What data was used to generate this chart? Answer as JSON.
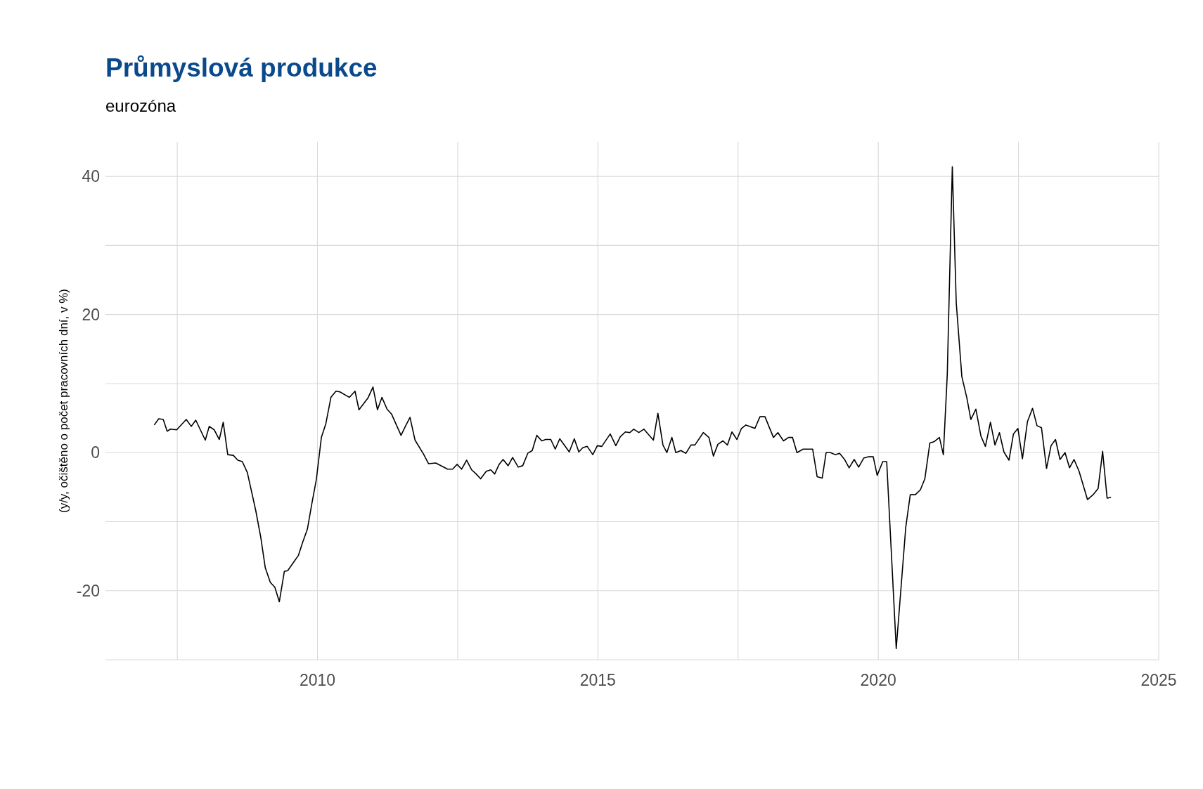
{
  "chart_data": {
    "type": "line",
    "title": "Průmyslová produkce",
    "subtitle": "eurozóna",
    "ylabel": "(y/y, očištěno o počet pracovních dní, v %)",
    "xlim": [
      2006.22,
      2025
    ],
    "ylim": [
      -30,
      45
    ],
    "xticks": [
      {
        "value": 2007.5,
        "label": null
      },
      2010,
      {
        "value": 2012.5,
        "label": null
      },
      2015,
      {
        "value": 2017.5,
        "label": null
      },
      2020,
      {
        "value": 2022.5,
        "label": null
      },
      2025
    ],
    "yticks": [
      {
        "value": -30,
        "label": null
      },
      -20,
      {
        "value": -10,
        "label": null
      },
      0,
      {
        "value": 10,
        "label": null
      },
      20,
      {
        "value": 30,
        "label": null
      },
      40
    ],
    "grid": true,
    "marker": "none",
    "line_style": "solid",
    "series": [
      {
        "color": "#000000",
        "x": [
          2007.09,
          2007.17,
          2007.25,
          2007.32,
          2007.38,
          2007.49,
          2007.66,
          2007.75,
          2007.83,
          2008.0,
          2008.07,
          2008.16,
          2008.25,
          2008.32,
          2008.4,
          2008.5,
          2008.58,
          2008.66,
          2008.75,
          2008.9,
          2008.99,
          2009.07,
          2009.16,
          2009.24,
          2009.32,
          2009.41,
          2009.47,
          2009.59,
          2009.66,
          2009.74,
          2009.82,
          2009.9,
          2009.98,
          2010.07,
          2010.15,
          2010.24,
          2010.33,
          2010.4,
          2010.57,
          2010.67,
          2010.74,
          2010.9,
          2010.99,
          2011.07,
          2011.15,
          2011.24,
          2011.32,
          2011.49,
          2011.58,
          2011.65,
          2011.74,
          2011.89,
          2011.98,
          2012.11,
          2012.32,
          2012.41,
          2012.49,
          2012.57,
          2012.66,
          2012.75,
          2012.83,
          2012.91,
          2013.01,
          2013.09,
          2013.16,
          2013.24,
          2013.31,
          2013.4,
          2013.48,
          2013.58,
          2013.66,
          2013.75,
          2013.83,
          2013.91,
          2014.0,
          2014.07,
          2014.16,
          2014.24,
          2014.32,
          2014.49,
          2014.58,
          2014.66,
          2014.73,
          2014.81,
          2014.91,
          2014.99,
          2015.07,
          2015.22,
          2015.32,
          2015.4,
          2015.49,
          2015.57,
          2015.64,
          2015.73,
          2015.82,
          2015.99,
          2016.07,
          2016.16,
          2016.23,
          2016.32,
          2016.39,
          2016.48,
          2016.57,
          2016.66,
          2016.73,
          2016.88,
          2016.98,
          2017.06,
          2017.14,
          2017.23,
          2017.31,
          2017.39,
          2017.48,
          2017.56,
          2017.64,
          2017.8,
          2017.89,
          2017.98,
          2018.13,
          2018.21,
          2018.31,
          2018.4,
          2018.47,
          2018.55,
          2018.66,
          2018.83,
          2018.91,
          2019.0,
          2019.07,
          2019.15,
          2019.23,
          2019.31,
          2019.4,
          2019.48,
          2019.57,
          2019.65,
          2019.74,
          2019.83,
          2019.91,
          2019.98,
          2020.08,
          2020.15,
          2020.32,
          2020.49,
          2020.57,
          2020.66,
          2020.75,
          2020.83,
          2020.92,
          2021.0,
          2021.09,
          2021.16,
          2021.23,
          2021.32,
          2021.39,
          2021.49,
          2021.58,
          2021.65,
          2021.74,
          2021.83,
          2021.91,
          2022.0,
          2022.08,
          2022.16,
          2022.24,
          2022.33,
          2022.41,
          2022.49,
          2022.57,
          2022.66,
          2022.75,
          2022.83,
          2022.91,
          2023.0,
          2023.08,
          2023.16,
          2023.24,
          2023.33,
          2023.41,
          2023.49,
          2023.58,
          2023.73,
          2023.83,
          2023.92,
          2024.0,
          2024.08,
          2024.15
        ],
        "values": [
          4.0,
          4.9,
          4.8,
          3.1,
          3.4,
          3.3,
          4.8,
          3.8,
          4.7,
          1.8,
          3.8,
          3.3,
          1.9,
          4.4,
          -0.3,
          -0.4,
          -1.1,
          -1.3,
          -2.9,
          -8.4,
          -12.3,
          -16.7,
          -18.8,
          -19.5,
          -21.6,
          -17.2,
          -17.1,
          -15.7,
          -14.9,
          -12.9,
          -11.1,
          -7.4,
          -3.9,
          2.2,
          4.2,
          8.0,
          8.9,
          8.8,
          8.0,
          8.9,
          6.2,
          7.9,
          9.5,
          6.2,
          8.0,
          6.3,
          5.6,
          2.5,
          4.0,
          5.1,
          1.8,
          -0.2,
          -1.6,
          -1.5,
          -2.4,
          -2.4,
          -1.7,
          -2.4,
          -1.1,
          -2.5,
          -3.1,
          -3.8,
          -2.7,
          -2.5,
          -3.1,
          -1.7,
          -1.0,
          -1.9,
          -0.7,
          -2.1,
          -1.9,
          -0.1,
          0.3,
          2.5,
          1.7,
          1.9,
          1.9,
          0.5,
          2.0,
          0.1,
          2.0,
          0.1,
          0.7,
          0.9,
          -0.3,
          1.0,
          0.9,
          2.7,
          1.0,
          2.3,
          3.0,
          2.9,
          3.4,
          2.9,
          3.4,
          1.8,
          5.7,
          1.1,
          0.0,
          2.2,
          0.0,
          0.3,
          -0.1,
          1.1,
          1.1,
          2.9,
          2.2,
          -0.5,
          1.2,
          1.7,
          1.1,
          3.0,
          1.9,
          3.5,
          4.0,
          3.5,
          5.2,
          5.2,
          2.2,
          2.9,
          1.7,
          2.2,
          2.2,
          0.0,
          0.5,
          0.5,
          -3.5,
          -3.7,
          0.0,
          0.0,
          -0.3,
          -0.1,
          -1.0,
          -2.2,
          -1.0,
          -2.1,
          -0.8,
          -0.6,
          -0.6,
          -3.3,
          -1.3,
          -1.3,
          -28.4,
          -10.8,
          -6.1,
          -6.1,
          -5.4,
          -3.8,
          1.4,
          1.6,
          2.2,
          -0.3,
          11.3,
          41.4,
          21.7,
          11.0,
          7.9,
          4.8,
          6.3,
          2.4,
          0.9,
          4.4,
          1.1,
          2.9,
          0.1,
          -1.1,
          2.7,
          3.5,
          -0.9,
          4.5,
          6.4,
          3.9,
          3.6,
          -2.3,
          1.0,
          1.9,
          -1.0,
          0.0,
          -2.2,
          -1.0,
          -2.7,
          -6.8,
          -6.1,
          -5.2,
          0.2,
          -6.6,
          -6.5
        ]
      }
    ]
  }
}
